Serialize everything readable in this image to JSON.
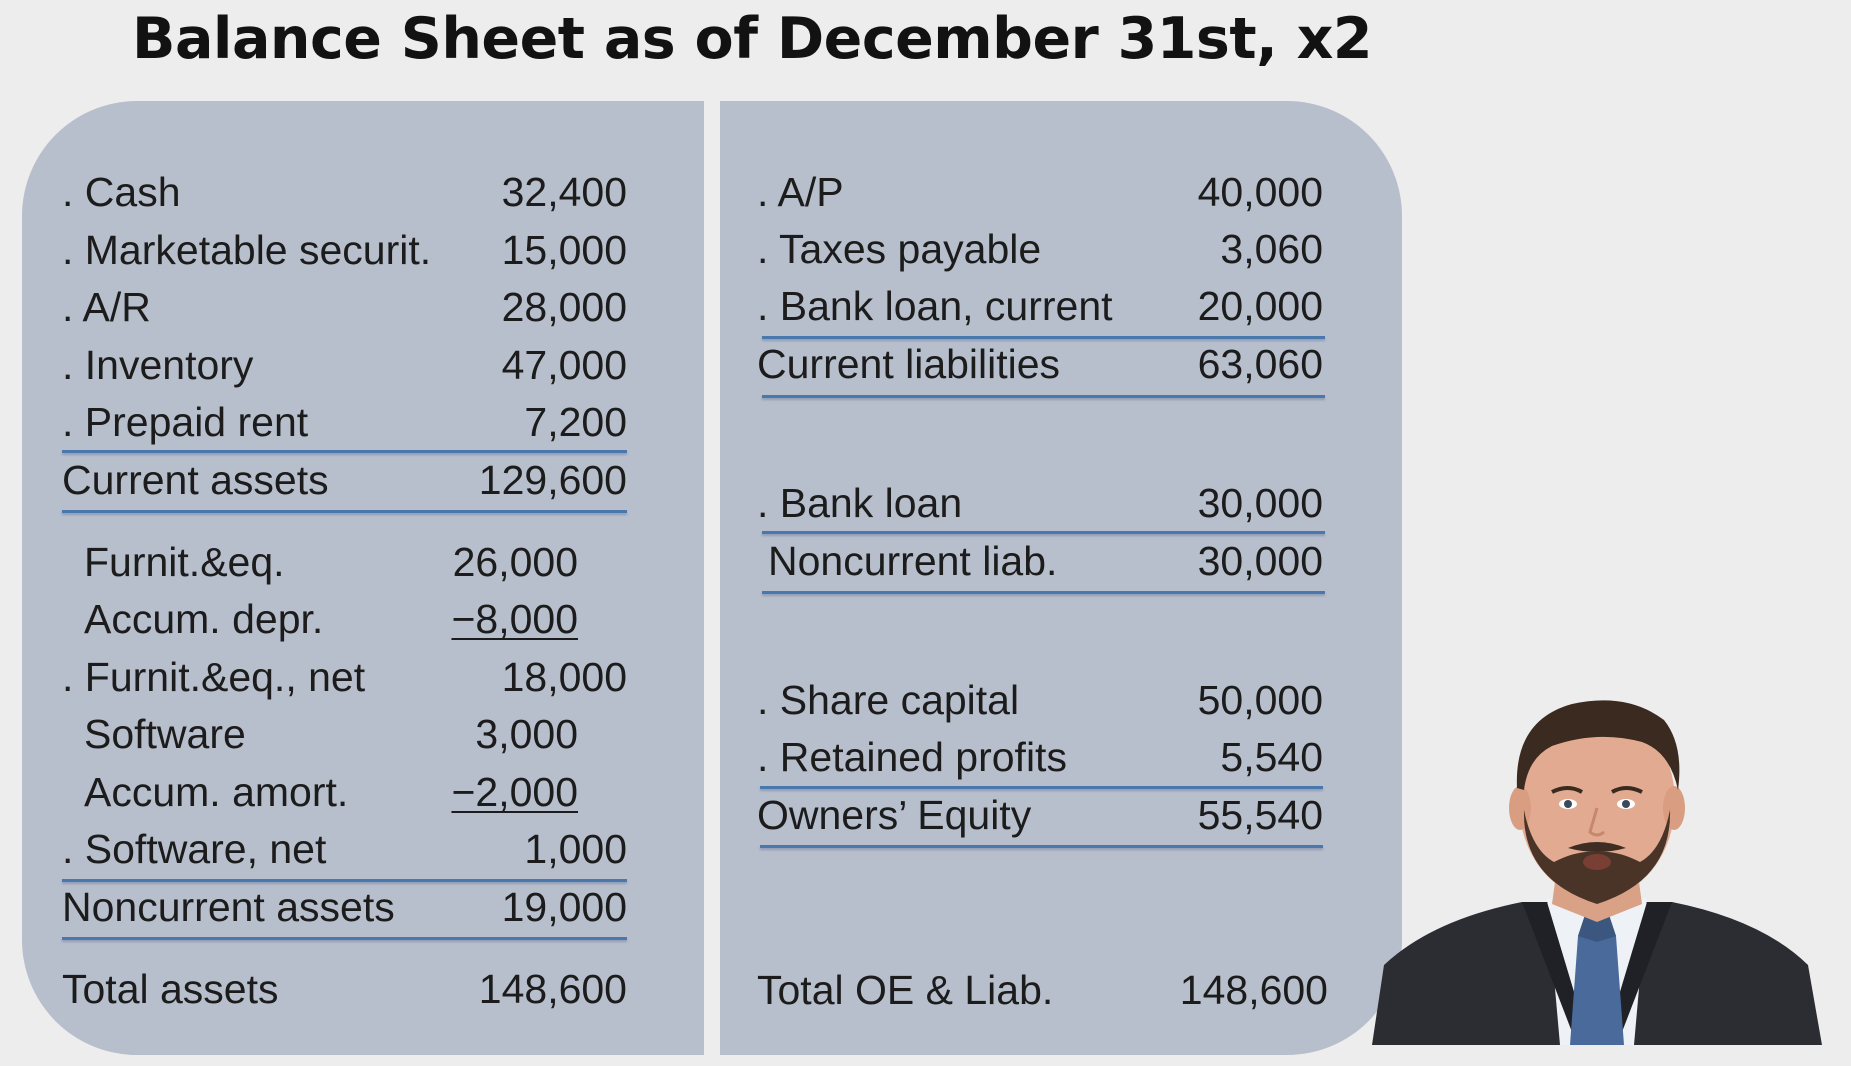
{
  "title": "Balance Sheet as of December 31st, x2",
  "assets": {
    "cash": {
      "label": ". Cash",
      "value": "32,400"
    },
    "securities": {
      "label": ". Marketable securit.",
      "value": "15,000"
    },
    "ar": {
      "label": ". A/R",
      "value": "28,000"
    },
    "inventory": {
      "label": ". Inventory",
      "value": "47,000"
    },
    "prepaid_rent": {
      "label": ". Prepaid rent",
      "value": "7,200"
    },
    "current_assets": {
      "label": "Current assets",
      "value": "129,600"
    },
    "furniture": {
      "label": "Furnit.&eq.",
      "value": "26,000"
    },
    "accum_depr": {
      "label": "Accum. depr.",
      "value": "−8,000"
    },
    "furniture_net": {
      "label": ". Furnit.&eq., net",
      "value": "18,000"
    },
    "software": {
      "label": "Software",
      "value": "3,000"
    },
    "accum_amort": {
      "label": "Accum. amort.",
      "value": "−2,000"
    },
    "software_net": {
      "label": ". Software, net",
      "value": "1,000"
    },
    "noncurrent_assets": {
      "label": "Noncurrent assets",
      "value": "19,000"
    },
    "total_assets": {
      "label": "Total assets",
      "value": "148,600"
    }
  },
  "liabilities_equity": {
    "ap": {
      "label": ". A/P",
      "value": "40,000"
    },
    "taxes_payable": {
      "label": ". Taxes payable",
      "value": "3,060"
    },
    "bank_loan_current": {
      "label": ". Bank loan, current",
      "value": "20,000"
    },
    "current_liabilities": {
      "label": "Current liabilities",
      "value": "63,060"
    },
    "bank_loan": {
      "label": ". Bank loan",
      "value": "30,000"
    },
    "noncurrent_liab": {
      "label": "Noncurrent liab.",
      "value": "30,000"
    },
    "share_capital": {
      "label": ". Share capital",
      "value": "50,000"
    },
    "retained_profits": {
      "label": ". Retained profits",
      "value": "5,540"
    },
    "owners_equity": {
      "label": "Owners’ Equity",
      "value": "55,540"
    },
    "total_oe_liab": {
      "label": "Total OE & Liab.",
      "value": "148,600"
    }
  }
}
